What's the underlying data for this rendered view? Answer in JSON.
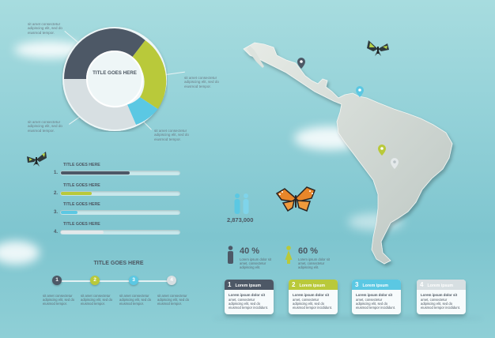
{
  "colors": {
    "dark": "#4d5866",
    "lime": "#b9c93a",
    "cyan": "#5bc8e3",
    "light": "#d7dfe2",
    "pale": "#c9d2d6"
  },
  "donut": {
    "title": "TITLE GOES HERE",
    "notes": {
      "top_left": "sit amet consectetur adipiscing elit, sed do eiusmod tempor.",
      "right": "sit amet consectetur adipiscing elit, sed do eiusmod tempor.",
      "bottom_left": "sit amet consectetur adipiscing elit, sed do eiusmod tempor.",
      "bottom_right": "sit amet consectetur adipiscing elit, sed do eiusmod tempor."
    }
  },
  "bars": [
    {
      "num": "1.",
      "title": "TITLE GOES HERE",
      "fraction": 0.58,
      "color": "#4d5866"
    },
    {
      "num": "2.",
      "title": "TITLE GOES HERE",
      "fraction": 0.26,
      "color": "#b9c93a"
    },
    {
      "num": "3.",
      "title": "TITLE GOES HERE",
      "fraction": 0.14,
      "color": "#5bc8e3"
    },
    {
      "num": "4.",
      "title": "TITLE GOES HERE",
      "fraction": 0.36,
      "color": "#e3e8ea"
    }
  ],
  "timeline": {
    "title": "TITLE GOES HERE",
    "steps": [
      {
        "num": "1",
        "color": "#4d5866",
        "text": "sit amet consectetur adipiscing elit, sed do eiusmod tempor."
      },
      {
        "num": "2",
        "color": "#b9c93a",
        "text": "sit amet consectetur adipiscing elit, sed do eiusmod tempor."
      },
      {
        "num": "3",
        "color": "#5bc8e3",
        "text": "sit amet consectetur adipiscing elit, sed do eiusmod tempor."
      },
      {
        "num": "4",
        "color": "#d7dfe2",
        "text": "sit amet consectetur adipiscing elit, sed do eiusmod tempor."
      }
    ]
  },
  "stats": {
    "population": "2,873,000",
    "male_pct": "40 %",
    "female_pct": "60 %",
    "male_text": "Lorem ipsum dolor sit amet, consectetur adipiscing elit.",
    "female_text": "Lorem ipsum dolor sit amet, consectetur adipiscing elit."
  },
  "cards": [
    {
      "num": "1",
      "title": "Lorem ipsum",
      "color": "#4d5866",
      "heading": "Lorem ipsum dolor sit",
      "body": "amet, consectetur adipiscing elit, sed do eiusmod tempor incididunt."
    },
    {
      "num": "2",
      "title": "Lorem ipsum",
      "color": "#b9c93a",
      "heading": "Lorem ipsum dolor sit",
      "body": "amet, consectetur adipiscing elit, sed do eiusmod tempor incididunt."
    },
    {
      "num": "3",
      "title": "Lorem ipsum",
      "color": "#5bc8e3",
      "heading": "Lorem ipsum dolor sit",
      "body": "amet, consectetur adipiscing elit, sed do eiusmod tempor incididunt."
    },
    {
      "num": "4",
      "title": "Lorem ipsum",
      "color": "#d7dfe2",
      "heading": "Lorem ipsum dolor sit",
      "body": "amet, consectetur adipiscing elit, sed do eiusmod tempor incididunt."
    }
  ]
}
